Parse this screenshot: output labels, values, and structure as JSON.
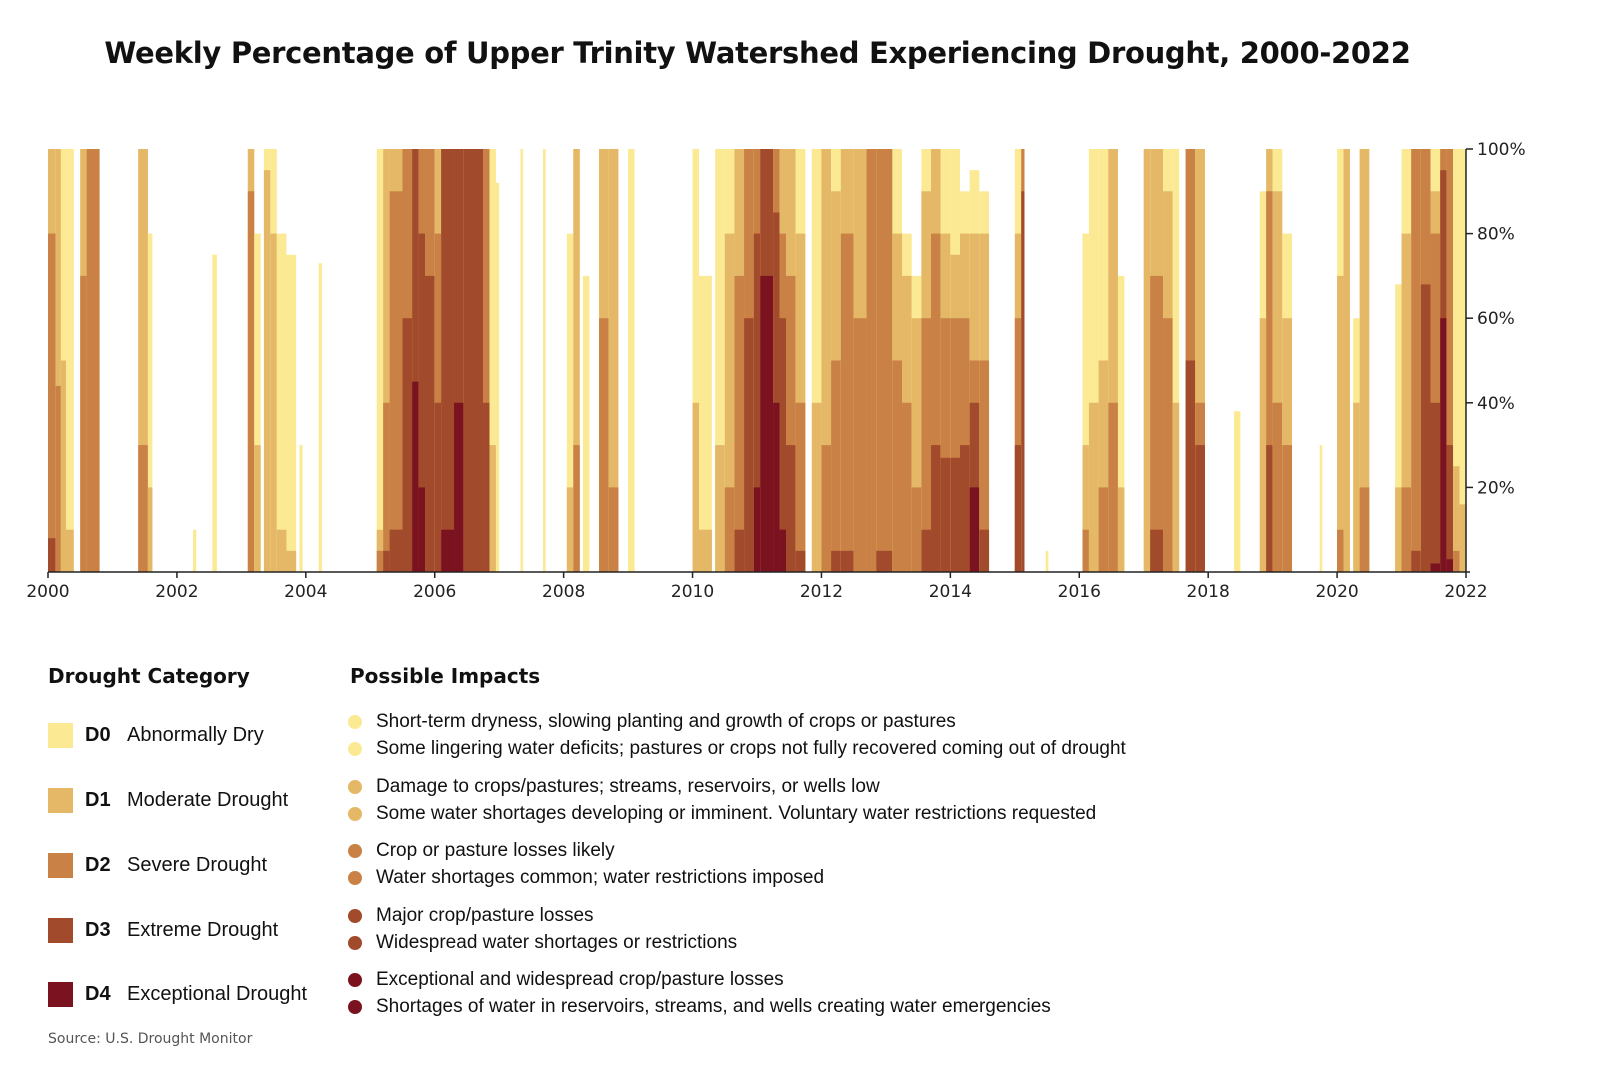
{
  "title": "Weekly Percentage of Upper Trinity Watershed Experiencing Drought, 2000-2022",
  "colors": {
    "D0": "#fbea93",
    "D1": "#e4b867",
    "D2": "#c98145",
    "D3": "#a24a2c",
    "D4": "#7a1220"
  },
  "chart_data": {
    "type": "area",
    "title": "Weekly Percentage of Upper Trinity Watershed Experiencing Drought, 2000-2022",
    "xlim": [
      2000,
      2022
    ],
    "ylim": [
      0,
      100
    ],
    "x_ticks": [
      "2000",
      "2002",
      "2004",
      "2006",
      "2008",
      "2010",
      "2012",
      "2014",
      "2016",
      "2018",
      "2020",
      "2022"
    ],
    "y_ticks": [
      "20%",
      "40%",
      "60%",
      "80%",
      "100%"
    ],
    "y_axis_side": "right",
    "series_names": [
      "D0",
      "D1",
      "D2",
      "D3",
      "D4"
    ],
    "note": "",
    "periods_columns": [
      "start",
      "end",
      "D0+",
      "D1+",
      "D2+",
      "D3+",
      "D4"
    ],
    "periods": [
      [
        2000.0,
        2000.12,
        100,
        100,
        80,
        8,
        0
      ],
      [
        2000.12,
        2000.2,
        100,
        100,
        44,
        0,
        0
      ],
      [
        2000.2,
        2000.28,
        100,
        50,
        0,
        0,
        0
      ],
      [
        2000.28,
        2000.4,
        100,
        10,
        0,
        0,
        0
      ],
      [
        2000.5,
        2000.6,
        100,
        100,
        70,
        0,
        0
      ],
      [
        2000.6,
        2000.8,
        100,
        100,
        100,
        0,
        0
      ],
      [
        2001.4,
        2001.55,
        100,
        100,
        30,
        0,
        0
      ],
      [
        2001.55,
        2001.62,
        80,
        20,
        0,
        0,
        0
      ],
      [
        2002.25,
        2002.3,
        10,
        0,
        0,
        0,
        0
      ],
      [
        2002.55,
        2002.62,
        75,
        0,
        0,
        0,
        0
      ],
      [
        2003.1,
        2003.2,
        100,
        100,
        90,
        0,
        0
      ],
      [
        2003.2,
        2003.3,
        80,
        30,
        0,
        0,
        0
      ],
      [
        2003.35,
        2003.45,
        100,
        95,
        0,
        0,
        0
      ],
      [
        2003.45,
        2003.55,
        100,
        80,
        0,
        0,
        0
      ],
      [
        2003.55,
        2003.7,
        80,
        10,
        0,
        0,
        0
      ],
      [
        2003.7,
        2003.85,
        75,
        5,
        0,
        0,
        0
      ],
      [
        2003.9,
        2003.95,
        30,
        0,
        0,
        0,
        0
      ],
      [
        2004.2,
        2004.25,
        73,
        0,
        0,
        0,
        0
      ],
      [
        2005.1,
        2005.2,
        100,
        10,
        5,
        0,
        0
      ],
      [
        2005.2,
        2005.3,
        100,
        100,
        40,
        5,
        0
      ],
      [
        2005.3,
        2005.5,
        100,
        100,
        90,
        10,
        0
      ],
      [
        2005.5,
        2005.65,
        100,
        100,
        100,
        60,
        0
      ],
      [
        2005.65,
        2005.75,
        100,
        100,
        100,
        100,
        45
      ],
      [
        2005.75,
        2005.85,
        100,
        100,
        100,
        80,
        20
      ],
      [
        2005.85,
        2006.0,
        100,
        100,
        100,
        70,
        0
      ],
      [
        2006.0,
        2006.1,
        100,
        100,
        80,
        40,
        0
      ],
      [
        2006.1,
        2006.3,
        100,
        100,
        100,
        100,
        10
      ],
      [
        2006.3,
        2006.45,
        100,
        100,
        100,
        100,
        40
      ],
      [
        2006.45,
        2006.75,
        100,
        100,
        100,
        100,
        0
      ],
      [
        2006.75,
        2006.85,
        100,
        100,
        100,
        40,
        0
      ],
      [
        2006.85,
        2006.95,
        100,
        30,
        0,
        0,
        0
      ],
      [
        2006.95,
        2007.0,
        92,
        0,
        0,
        0,
        0
      ],
      [
        2007.33,
        2007.37,
        100,
        0,
        0,
        0,
        0
      ],
      [
        2007.68,
        2007.72,
        100,
        0,
        0,
        0,
        0
      ],
      [
        2008.05,
        2008.15,
        80,
        20,
        0,
        0,
        0
      ],
      [
        2008.15,
        2008.25,
        100,
        100,
        30,
        0,
        0
      ],
      [
        2008.3,
        2008.4,
        70,
        0,
        0,
        0,
        0
      ],
      [
        2008.55,
        2008.7,
        100,
        100,
        60,
        0,
        0
      ],
      [
        2008.7,
        2008.85,
        100,
        100,
        20,
        0,
        0
      ],
      [
        2009.0,
        2009.1,
        100,
        0,
        0,
        0,
        0
      ],
      [
        2010.0,
        2010.1,
        100,
        40,
        0,
        0,
        0
      ],
      [
        2010.1,
        2010.3,
        70,
        10,
        0,
        0,
        0
      ],
      [
        2010.35,
        2010.5,
        100,
        30,
        0,
        0,
        0
      ],
      [
        2010.5,
        2010.65,
        100,
        80,
        20,
        0,
        0
      ],
      [
        2010.65,
        2010.8,
        100,
        100,
        70,
        10,
        0
      ],
      [
        2010.8,
        2010.95,
        100,
        100,
        100,
        60,
        0
      ],
      [
        2010.95,
        2011.05,
        100,
        100,
        100,
        80,
        20
      ],
      [
        2011.05,
        2011.25,
        100,
        100,
        100,
        100,
        70
      ],
      [
        2011.25,
        2011.35,
        100,
        100,
        100,
        85,
        40
      ],
      [
        2011.35,
        2011.45,
        100,
        100,
        80,
        60,
        10
      ],
      [
        2011.45,
        2011.6,
        100,
        100,
        70,
        30,
        0
      ],
      [
        2011.6,
        2011.75,
        100,
        80,
        40,
        5,
        0
      ],
      [
        2011.85,
        2012.0,
        100,
        40,
        0,
        0,
        0
      ],
      [
        2012.0,
        2012.15,
        100,
        100,
        30,
        0,
        0
      ],
      [
        2012.15,
        2012.3,
        100,
        90,
        50,
        5,
        0
      ],
      [
        2012.3,
        2012.5,
        100,
        100,
        80,
        5,
        0
      ],
      [
        2012.5,
        2012.7,
        100,
        100,
        60,
        0,
        0
      ],
      [
        2012.7,
        2012.85,
        100,
        100,
        100,
        0,
        0
      ],
      [
        2012.85,
        2013.1,
        100,
        100,
        100,
        5,
        0
      ],
      [
        2013.1,
        2013.25,
        100,
        80,
        50,
        0,
        0
      ],
      [
        2013.25,
        2013.4,
        80,
        70,
        40,
        0,
        0
      ],
      [
        2013.4,
        2013.55,
        70,
        60,
        20,
        0,
        0
      ],
      [
        2013.55,
        2013.7,
        100,
        90,
        60,
        10,
        0
      ],
      [
        2013.7,
        2013.85,
        100,
        100,
        80,
        30,
        0
      ],
      [
        2013.85,
        2014.0,
        100,
        80,
        60,
        27,
        0
      ],
      [
        2014.0,
        2014.15,
        100,
        75,
        60,
        27,
        0
      ],
      [
        2014.15,
        2014.3,
        90,
        80,
        60,
        30,
        0
      ],
      [
        2014.3,
        2014.45,
        95,
        80,
        50,
        40,
        20
      ],
      [
        2014.45,
        2014.6,
        90,
        80,
        50,
        10,
        0
      ],
      [
        2015.0,
        2015.1,
        100,
        80,
        60,
        30,
        0
      ],
      [
        2015.1,
        2015.15,
        100,
        100,
        100,
        90,
        0
      ],
      [
        2015.48,
        2015.52,
        5,
        0,
        0,
        0,
        0
      ],
      [
        2016.05,
        2016.15,
        80,
        30,
        10,
        0,
        0
      ],
      [
        2016.15,
        2016.3,
        100,
        40,
        0,
        0,
        0
      ],
      [
        2016.3,
        2016.45,
        100,
        50,
        20,
        0,
        0
      ],
      [
        2016.45,
        2016.6,
        100,
        100,
        40,
        0,
        0
      ],
      [
        2016.6,
        2016.7,
        70,
        20,
        0,
        0,
        0
      ],
      [
        2017.0,
        2017.1,
        100,
        100,
        0,
        0,
        0
      ],
      [
        2017.1,
        2017.3,
        100,
        100,
        70,
        10,
        0
      ],
      [
        2017.3,
        2017.45,
        100,
        90,
        60,
        0,
        0
      ],
      [
        2017.45,
        2017.55,
        100,
        40,
        0,
        0,
        0
      ],
      [
        2017.65,
        2017.8,
        100,
        100,
        100,
        50,
        0
      ],
      [
        2017.8,
        2017.95,
        100,
        100,
        40,
        30,
        0
      ],
      [
        2018.4,
        2018.5,
        38,
        0,
        0,
        0,
        0
      ],
      [
        2018.8,
        2018.9,
        90,
        60,
        0,
        0,
        0
      ],
      [
        2018.9,
        2019.0,
        100,
        100,
        90,
        30,
        0
      ],
      [
        2019.0,
        2019.15,
        100,
        90,
        40,
        0,
        0
      ],
      [
        2019.15,
        2019.3,
        80,
        60,
        30,
        0,
        0
      ],
      [
        2019.73,
        2019.77,
        30,
        0,
        0,
        0,
        0
      ],
      [
        2020.0,
        2020.1,
        100,
        70,
        10,
        0,
        0
      ],
      [
        2020.1,
        2020.2,
        100,
        100,
        0,
        0,
        0
      ],
      [
        2020.25,
        2020.35,
        60,
        40,
        0,
        0,
        0
      ],
      [
        2020.35,
        2020.5,
        100,
        100,
        20,
        0,
        0
      ],
      [
        2020.9,
        2021.0,
        68,
        20,
        0,
        0,
        0
      ],
      [
        2021.0,
        2021.15,
        100,
        80,
        20,
        0,
        0
      ],
      [
        2021.15,
        2021.3,
        100,
        100,
        100,
        5,
        0
      ],
      [
        2021.3,
        2021.45,
        100,
        100,
        100,
        68,
        0
      ],
      [
        2021.45,
        2021.6,
        100,
        90,
        80,
        40,
        2
      ],
      [
        2021.6,
        2021.7,
        100,
        100,
        100,
        95,
        60
      ],
      [
        2021.7,
        2021.8,
        100,
        100,
        100,
        30,
        3
      ],
      [
        2021.8,
        2021.9,
        100,
        25,
        5,
        0,
        0
      ],
      [
        2021.9,
        2022.0,
        100,
        16,
        0,
        0,
        0
      ]
    ]
  },
  "legend": {
    "category_heading": "Drought Category",
    "impacts_heading": "Possible Impacts",
    "categories": [
      {
        "code": "D0",
        "label": "Abnormally Dry",
        "impacts": [
          "Short-term dryness, slowing planting and growth of crops or pastures",
          "Some lingering water deficits; pastures or crops not fully recovered coming out of drought"
        ]
      },
      {
        "code": "D1",
        "label": "Moderate Drought",
        "impacts": [
          "Damage to crops/pastures; streams, reservoirs, or wells low",
          "Some water shortages developing or imminent. Voluntary water restrictions requested"
        ]
      },
      {
        "code": "D2",
        "label": "Severe Drought",
        "impacts": [
          "Crop or pasture losses likely",
          "Water shortages common; water restrictions imposed"
        ]
      },
      {
        "code": "D3",
        "label": "Extreme Drought",
        "impacts": [
          "Major crop/pasture losses",
          "Widespread water shortages or restrictions"
        ]
      },
      {
        "code": "D4",
        "label": "Exceptional Drought",
        "impacts": [
          "Exceptional and widespread crop/pasture losses",
          "Shortages of water in reservoirs, streams, and wells creating water emergencies"
        ]
      }
    ]
  },
  "source": "Source: U.S. Drought Monitor"
}
